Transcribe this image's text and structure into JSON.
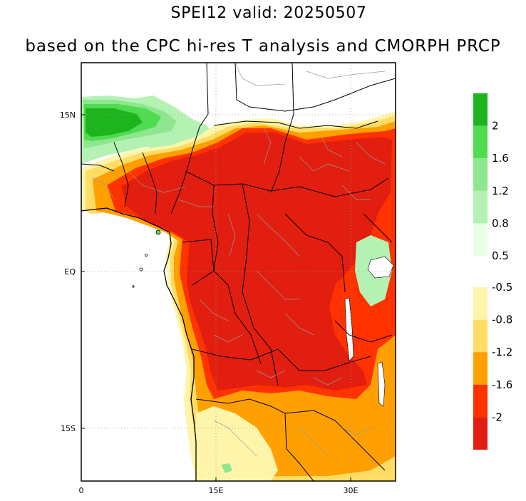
{
  "title": {
    "line1": "SPEI12   valid: 20250507",
    "line2": "based on the CPC hi-res T analysis and CMORPH PRCP"
  },
  "map": {
    "lon_range": [
      0,
      35
    ],
    "lat_range": [
      -28,
      22
    ],
    "x_ticks": [
      {
        "value": 0,
        "label": "0"
      },
      {
        "value": 15,
        "label": "15E"
      },
      {
        "value": 30,
        "label": "30E"
      }
    ],
    "y_ticks": [
      {
        "value": 15,
        "label": "15N"
      },
      {
        "value": 0,
        "label": "EQ"
      },
      {
        "value": -15,
        "label": "15S"
      }
    ],
    "grid": true,
    "ocean_color": "#ffffff",
    "border_color": "#000000",
    "admin_border_color": "#9a9a9a"
  },
  "colorbar": {
    "wet": [
      {
        "color": "#e6ffe6",
        "label": "0.5"
      },
      {
        "color": "#b4f2b4",
        "label": "0.8"
      },
      {
        "color": "#8ee68e",
        "label": "1.2"
      },
      {
        "color": "#50dc50",
        "label": "1.6"
      },
      {
        "color": "#1eb41e",
        "label": "2"
      }
    ],
    "dry": [
      {
        "color": "#fff5aa",
        "label": "-0.5"
      },
      {
        "color": "#ffdc64",
        "label": "-0.8"
      },
      {
        "color": "#ffa000",
        "label": "-1.2"
      },
      {
        "color": "#ff3200",
        "label": "-1.6"
      },
      {
        "color": "#e11e0f",
        "label": "-2"
      }
    ]
  }
}
